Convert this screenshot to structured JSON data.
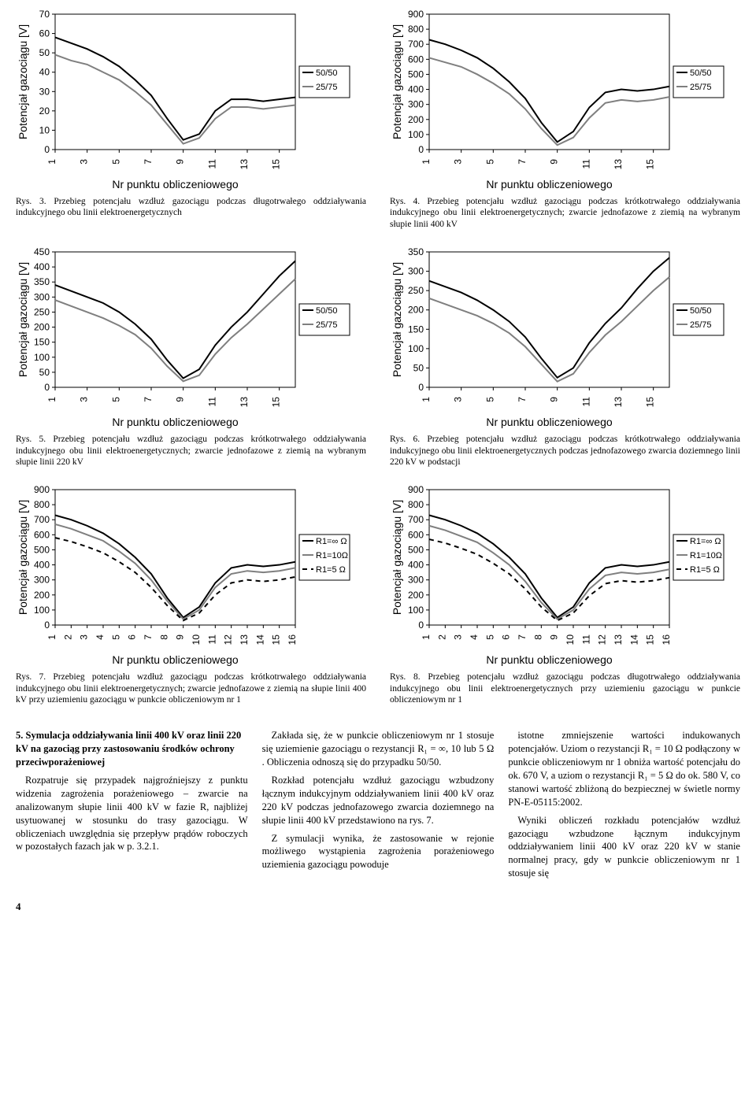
{
  "charts": {
    "axis": {
      "label_fontsize": 14,
      "tick_fontsize": 12,
      "axis_color": "#000000",
      "line_5050_color": "#000000",
      "line_2575_color": "#7f7f7f",
      "line_R10_color": "#7f7f7f",
      "line_R5_color": "#000000",
      "dash_pattern": "6,5",
      "line_width": 2
    },
    "c3": {
      "ylabel": "Potencjał gazociągu [V]",
      "xlabel": "Nr punktu obliczeniowego",
      "ylim": [
        0,
        70
      ],
      "ytick_step": 10,
      "xlim": [
        1,
        16
      ],
      "xticks": [
        1,
        3,
        5,
        7,
        9,
        11,
        13,
        15
      ],
      "legend": [
        "50/50",
        "25/75"
      ],
      "series_5050": [
        58,
        55,
        52,
        48,
        43,
        36,
        28,
        16,
        5,
        8,
        20,
        26,
        26,
        25,
        26,
        27
      ],
      "series_2575": [
        49,
        46,
        44,
        40,
        36,
        30,
        23,
        13,
        3,
        6,
        16,
        22,
        22,
        21,
        22,
        23
      ]
    },
    "c4": {
      "ylabel": "Potencjał gazociągu [V]",
      "xlabel": "Nr punktu obliczeniowego",
      "ylim": [
        0,
        900
      ],
      "ytick_step": 100,
      "xlim": [
        1,
        16
      ],
      "xticks": [
        1,
        3,
        5,
        7,
        9,
        11,
        13,
        15
      ],
      "legend": [
        "50/50",
        "25/75"
      ],
      "series_5050": [
        730,
        700,
        660,
        610,
        540,
        450,
        340,
        180,
        50,
        120,
        280,
        380,
        400,
        390,
        400,
        420
      ],
      "series_2575": [
        610,
        580,
        550,
        500,
        440,
        370,
        270,
        140,
        30,
        80,
        210,
        310,
        330,
        320,
        330,
        350
      ]
    },
    "c5": {
      "ylabel": "Potencjał gazociągu [V]",
      "xlabel": "Nr punktu obliczeniowego",
      "ylim": [
        0,
        450
      ],
      "ytick_step": 50,
      "xlim": [
        1,
        16
      ],
      "xticks": [
        1,
        3,
        5,
        7,
        9,
        11,
        13,
        15
      ],
      "legend": [
        "50/50",
        "25/75"
      ],
      "series_5050": [
        340,
        320,
        300,
        280,
        250,
        210,
        160,
        90,
        30,
        60,
        140,
        200,
        250,
        310,
        370,
        420
      ],
      "series_2575": [
        290,
        270,
        250,
        230,
        205,
        175,
        130,
        70,
        20,
        40,
        110,
        165,
        210,
        260,
        310,
        360
      ]
    },
    "c6": {
      "ylabel": "Potencjał gazociągu [V]",
      "xlabel": "Nr punktu obliczeniowego",
      "ylim": [
        0,
        350
      ],
      "ytick_step": 50,
      "xlim": [
        1,
        16
      ],
      "xticks": [
        1,
        3,
        5,
        7,
        9,
        11,
        13,
        15
      ],
      "legend": [
        "50/50",
        "25/75"
      ],
      "series_5050": [
        275,
        260,
        245,
        225,
        200,
        170,
        130,
        75,
        25,
        50,
        115,
        165,
        205,
        255,
        300,
        335
      ],
      "series_2575": [
        230,
        215,
        200,
        185,
        165,
        140,
        105,
        60,
        15,
        35,
        90,
        135,
        170,
        210,
        250,
        285
      ]
    },
    "c7": {
      "ylabel": "Potencjał gazociągu [V]",
      "xlabel": "Nr punktu obliczeniowego",
      "ylim": [
        0,
        900
      ],
      "ytick_step": 100,
      "xlim": [
        1,
        16
      ],
      "xticks": [
        1,
        2,
        3,
        4,
        5,
        6,
        7,
        8,
        9,
        10,
        11,
        12,
        13,
        14,
        15,
        16
      ],
      "legend": [
        "R1=∞ Ω",
        "R1=10Ω",
        "R1=5 Ω"
      ],
      "series_inf": [
        730,
        700,
        660,
        610,
        540,
        450,
        340,
        180,
        50,
        120,
        280,
        380,
        400,
        390,
        400,
        420
      ],
      "series_R10": [
        670,
        640,
        600,
        560,
        490,
        410,
        300,
        160,
        40,
        100,
        250,
        340,
        360,
        350,
        360,
        380
      ],
      "series_R5": [
        580,
        555,
        520,
        480,
        420,
        350,
        250,
        130,
        30,
        80,
        200,
        280,
        300,
        290,
        300,
        320
      ]
    },
    "c8": {
      "ylabel": "Potencjał gazociągu [V]",
      "xlabel": "Nr punktu obliczeniowego",
      "ylim": [
        0,
        900
      ],
      "ytick_step": 100,
      "xlim": [
        1,
        16
      ],
      "xticks": [
        1,
        2,
        3,
        4,
        5,
        6,
        7,
        8,
        9,
        10,
        11,
        12,
        13,
        14,
        15,
        16
      ],
      "legend": [
        "R1=∞ Ω",
        "R1=10Ω",
        "R1=5 Ω"
      ],
      "series_inf": [
        730,
        700,
        660,
        610,
        540,
        450,
        340,
        180,
        50,
        120,
        280,
        380,
        400,
        390,
        400,
        420
      ],
      "series_R10": [
        660,
        630,
        590,
        550,
        480,
        400,
        290,
        150,
        40,
        100,
        240,
        330,
        350,
        340,
        350,
        370
      ],
      "series_R5": [
        570,
        545,
        510,
        470,
        410,
        340,
        240,
        120,
        30,
        80,
        195,
        275,
        295,
        285,
        295,
        315
      ]
    }
  },
  "captions": {
    "c3": "Rys. 3. Przebieg potencjału wzdłuż gazociągu podczas długotrwałego oddziaływania indukcyjnego obu linii elektroenergetycznych",
    "c4": "Rys. 4. Przebieg potencjału wzdłuż gazociągu podczas krótkotrwałego oddziaływania indukcyjnego obu linii elektroenergetycznych; zwarcie jednofazowe z ziemią na wybranym słupie linii 400 kV",
    "c5": "Rys. 5. Przebieg potencjału wzdłuż gazociągu podczas krótkotrwałego oddziaływania indukcyjnego obu linii elektroenergetycznych; zwarcie jednofazowe z ziemią na wybranym słupie  linii 220 kV",
    "c6": "Rys. 6. Przebieg potencjału wzdłuż gazociągu podczas krótkotrwałego oddziaływania indukcyjnego obu linii elektroenergetycznych podczas jednofazowego zwarcia doziemnego  linii 220 kV  w podstacji",
    "c7": "Rys. 7. Przebieg potencjału wzdłuż gazociągu podczas krótkotrwałego oddziaływania indukcyjnego obu linii elektroenergetycznych; zwarcie jednofazowe z ziemią na słupie linii 400 kV przy uziemieniu gazociągu w punkcie obliczeniowym nr 1",
    "c8": "Rys. 8. Przebieg potencjału wzdłuż gazociągu podczas długotrwałego oddziaływania indukcyjnego obu linii elektroenergetycznych przy uziemieniu gazociągu w punkcie obliczeniowym nr 1"
  },
  "body": {
    "heading": "5.  Symulacja oddziaływania linii 400 kV oraz linii 220 kV na gazociąg przy zastosowaniu środków ochrony przeciwporażeniowej",
    "col1_p1": "Rozpatruje się przypadek najgroźniejszy z punktu widzenia  zagrożenia porażeniowego – zwarcie na analizowanym słupie linii 400 kV w fazie R, najbliżej usytuowanej w stosunku do trasy gazociągu. W obliczeniach uwzględnia się przepływ prądów roboczych w pozostałych fazach jak w p. 3.2.1.",
    "col2_p1": "Zakłada się, że w punkcie obliczeniowym nr 1 stosuje się uziemienie gazociągu o rezystancji R₁ = ∞, 10 lub 5 Ω . Obliczenia odnoszą się  do przypadku 50/50.",
    "col2_p2": "Rozkład potencjału wzdłuż gazociągu wzbudzony łącznym indukcyjnym oddziaływaniem linii 400 kV oraz 220 kV podczas jednofazowego zwarcia doziemnego na słupie linii 400 kV  przedstawiono na rys. 7.",
    "col2_p3": "Z symulacji wynika, że zastosowanie w rejonie możliwego wystąpienia zagrożenia porażeniowego uziemienia gazociągu powoduje",
    "col3_p1": "istotne zmniejszenie wartości indukowanych potencjałów. Uziom o rezystancji R₁ = 10 Ω podłączony w punkcie obliczeniowym nr 1 obniża wartość potencjału do ok. 670 V, a uziom o rezystancji R₁ = 5 Ω  do ok. 580 V, co stanowi wartość zbliżoną do bezpiecznej w świetle normy  PN-E-05115:2002.",
    "col3_p2": "Wyniki obliczeń rozkładu potencjałów wzdłuż gazociągu wzbudzone łącznym indukcyjnym oddziaływaniem linii 400 kV oraz 220 kV w stanie normalnej pracy, gdy w punkcie obliczeniowym nr 1 stosuje się"
  },
  "page_number": "4"
}
